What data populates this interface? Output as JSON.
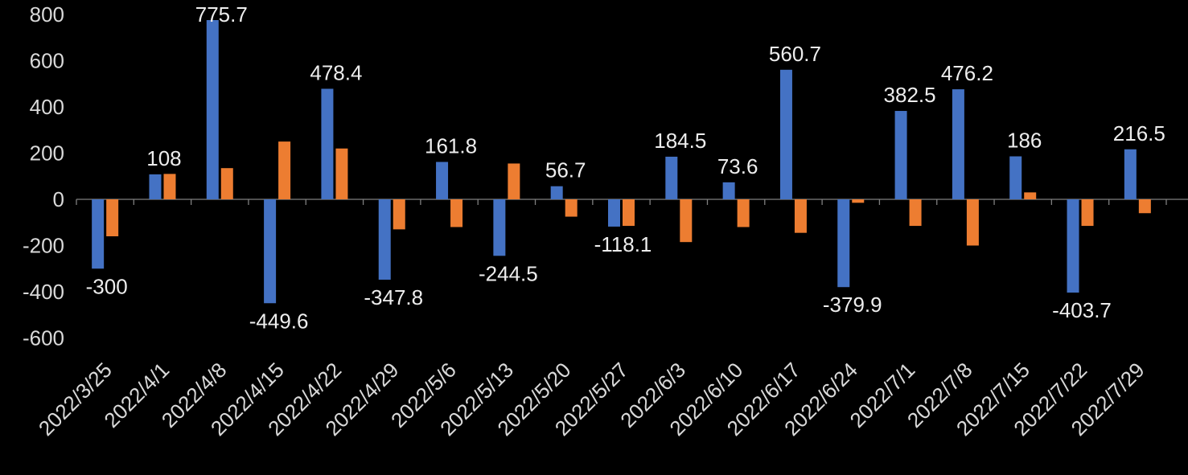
{
  "chart_data": {
    "type": "bar",
    "title": "",
    "legend": "none",
    "grid": false,
    "background": "#000000",
    "text_color": "#D9D9D9",
    "categories": [
      "2022/3/25",
      "2022/4/1",
      "2022/4/8",
      "2022/4/15",
      "2022/4/22",
      "2022/4/29",
      "2022/5/6",
      "2022/5/13",
      "2022/5/20",
      "2022/5/27",
      "2022/6/3",
      "2022/6/10",
      "2022/6/17",
      "2022/6/24",
      "2022/7/1",
      "2022/7/8",
      "2022/7/15",
      "2022/7/22",
      "2022/7/29"
    ],
    "series": [
      {
        "name": "blue",
        "color": "#4472C4",
        "values": [
          -300,
          108,
          775.7,
          -449.6,
          478.4,
          -347.8,
          161.8,
          -244.5,
          56.7,
          -118.1,
          184.5,
          73.6,
          560.7,
          -379.9,
          382.5,
          476.2,
          186,
          -403.7,
          216.5
        ]
      },
      {
        "name": "orange",
        "color": "#ED7D31",
        "values": [
          -160,
          110,
          135,
          250,
          220,
          -130,
          -120,
          155,
          -75,
          -115,
          -185,
          -120,
          -145,
          -15,
          -115,
          -200,
          30,
          -115,
          -60
        ]
      }
    ],
    "labeled_series": 0,
    "data_labels": [
      "-300",
      "108",
      "775.7",
      "-449.6",
      "478.4",
      "-347.8",
      "161.8",
      "-244.5",
      "56.7",
      "-118.1",
      "184.5",
      "73.6",
      "560.7",
      "-379.9",
      "382.5",
      "476.2",
      "186",
      "-403.7",
      "216.5"
    ],
    "y_ticks": [
      800,
      600,
      400,
      200,
      0,
      -200,
      -400,
      -600
    ],
    "ylim": [
      -600,
      800
    ]
  }
}
